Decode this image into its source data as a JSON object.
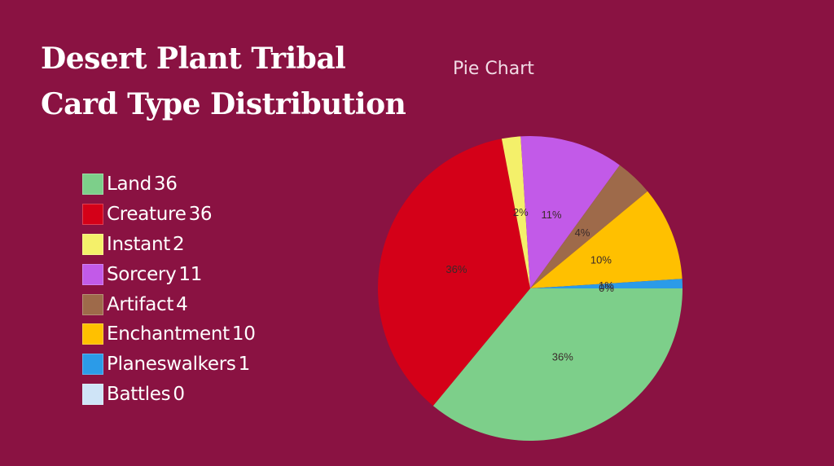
{
  "header": {
    "title": "Desert Plant Tribal Card Type Distribution",
    "subtitle": "Pie Chart"
  },
  "chart_data": {
    "type": "pie",
    "title": "Pie Chart",
    "legend_position": "left",
    "categories": [
      "Land",
      "Creature",
      "Instant",
      "Sorcery",
      "Artifact",
      "Enchantment",
      "Planeswalkers",
      "Battles"
    ],
    "values": [
      36,
      36,
      2,
      11,
      4,
      10,
      1,
      0
    ],
    "value_labels": [
      "36",
      "36",
      "2",
      "11",
      "4",
      "10",
      "1",
      "0"
    ],
    "percent_labels": [
      "36%",
      "36%",
      "2%",
      "11%",
      "4%",
      "10%",
      "1%",
      "0%"
    ],
    "colors": [
      "#7dcf8a",
      "#d40018",
      "#f4f06a",
      "#c25ae8",
      "#9e6a4a",
      "#ffc000",
      "#2b9be8",
      "#cfe4f7"
    ]
  }
}
